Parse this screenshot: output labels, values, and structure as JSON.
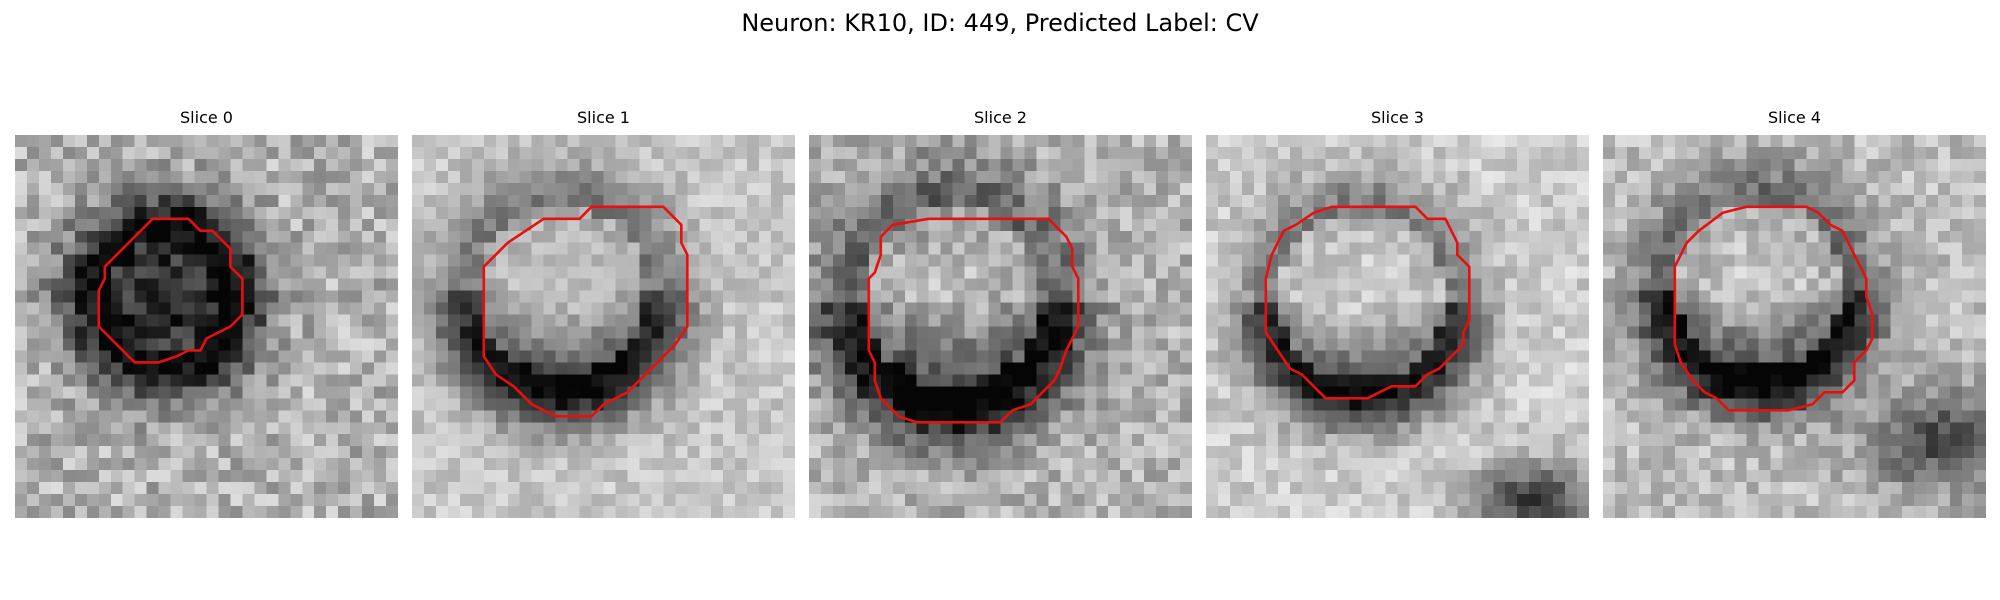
{
  "figure": {
    "title": "Neuron: KR10, ID: 449, Predicted Label: CV",
    "contour_color": "#e8100f",
    "colormap": "gray"
  },
  "slices": [
    {
      "title": "Slice 0"
    },
    {
      "title": "Slice 1"
    },
    {
      "title": "Slice 2"
    },
    {
      "title": "Slice 3"
    },
    {
      "title": "Slice 4"
    }
  ]
}
